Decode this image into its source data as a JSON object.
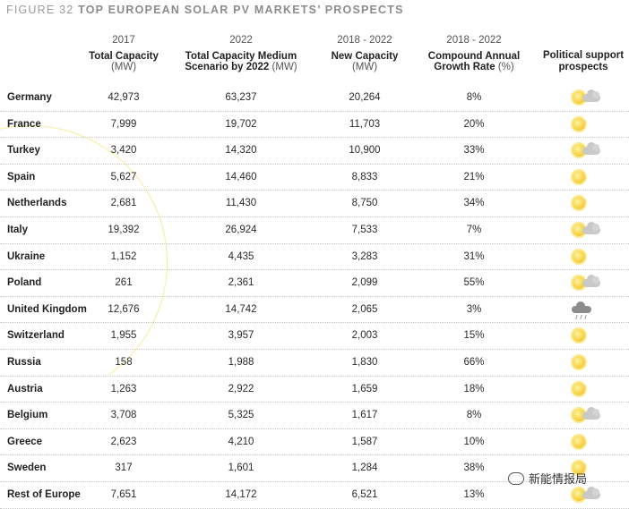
{
  "figure": {
    "number": "FIGURE 32",
    "title": "TOP EUROPEAN SOLAR PV MARKETS’ PROSPECTS"
  },
  "headers": {
    "col1": {
      "year": "2017",
      "bold": "Total Capacity",
      "unit": "(MW)"
    },
    "col2": {
      "year": "2022",
      "bold_line1": "Total Capacity Medium",
      "bold_line2": "Scenario by 2022",
      "unit": "(MW)"
    },
    "col3": {
      "year": "2018 - 2022",
      "bold": "New Capacity",
      "unit": "(MW)"
    },
    "col4": {
      "year": "2018 - 2022",
      "bold_line1": "Compound Annual",
      "bold_line2": "Growth Rate",
      "unit": "(%)"
    },
    "col5": {
      "bold_line1": "Political support",
      "bold_line2": "prospects"
    }
  },
  "rows": [
    {
      "country": "Germany",
      "cap2017": "42,973",
      "cap2022": "63,237",
      "new": "20,264",
      "cagr": "8%",
      "prospect": "sun-cloud"
    },
    {
      "country": "France",
      "cap2017": "7,999",
      "cap2022": "19,702",
      "new": "11,703",
      "cagr": "20%",
      "prospect": "sun"
    },
    {
      "country": "Turkey",
      "cap2017": "3,420",
      "cap2022": "14,320",
      "new": "10,900",
      "cagr": "33%",
      "prospect": "sun-cloud"
    },
    {
      "country": "Spain",
      "cap2017": "5,627",
      "cap2022": "14,460",
      "new": "8,833",
      "cagr": "21%",
      "prospect": "sun"
    },
    {
      "country": "Netherlands",
      "cap2017": "2,681",
      "cap2022": "11,430",
      "new": "8,750",
      "cagr": "34%",
      "prospect": "sun"
    },
    {
      "country": "Italy",
      "cap2017": "19,392",
      "cap2022": "26,924",
      "new": "7,533",
      "cagr": "7%",
      "prospect": "sun-cloud"
    },
    {
      "country": "Ukraine",
      "cap2017": "1,152",
      "cap2022": "4,435",
      "new": "3,283",
      "cagr": "31%",
      "prospect": "sun"
    },
    {
      "country": "Poland",
      "cap2017": "261",
      "cap2022": "2,361",
      "new": "2,099",
      "cagr": "55%",
      "prospect": "sun-cloud"
    },
    {
      "country": "United Kingdom",
      "cap2017": "12,676",
      "cap2022": "14,742",
      "new": "2,065",
      "cagr": "3%",
      "prospect": "rain-cloud"
    },
    {
      "country": "Switzerland",
      "cap2017": "1,955",
      "cap2022": "3,957",
      "new": "2,003",
      "cagr": "15%",
      "prospect": "sun"
    },
    {
      "country": "Russia",
      "cap2017": "158",
      "cap2022": "1,988",
      "new": "1,830",
      "cagr": "66%",
      "prospect": "sun"
    },
    {
      "country": "Austria",
      "cap2017": "1,263",
      "cap2022": "2,922",
      "new": "1,659",
      "cagr": "18%",
      "prospect": "sun"
    },
    {
      "country": "Belgium",
      "cap2017": "3,708",
      "cap2022": "5,325",
      "new": "1,617",
      "cagr": "8%",
      "prospect": "sun-cloud"
    },
    {
      "country": "Greece",
      "cap2017": "2,623",
      "cap2022": "4,210",
      "new": "1,587",
      "cagr": "10%",
      "prospect": "sun"
    },
    {
      "country": "Sweden",
      "cap2017": "317",
      "cap2022": "1,601",
      "new": "1,284",
      "cagr": "38%",
      "prospect": "sun"
    },
    {
      "country": "Rest of Europe",
      "cap2017": "7,651",
      "cap2022": "14,172",
      "new": "6,521",
      "cagr": "13%",
      "prospect": "sun-cloud"
    }
  ],
  "watermark": {
    "text": "新能情报局"
  },
  "colors": {
    "sun": "#f7d44a",
    "cloud": "#c9c9c9",
    "rain": "#8c8c8c",
    "title": "#8c8c8c"
  }
}
